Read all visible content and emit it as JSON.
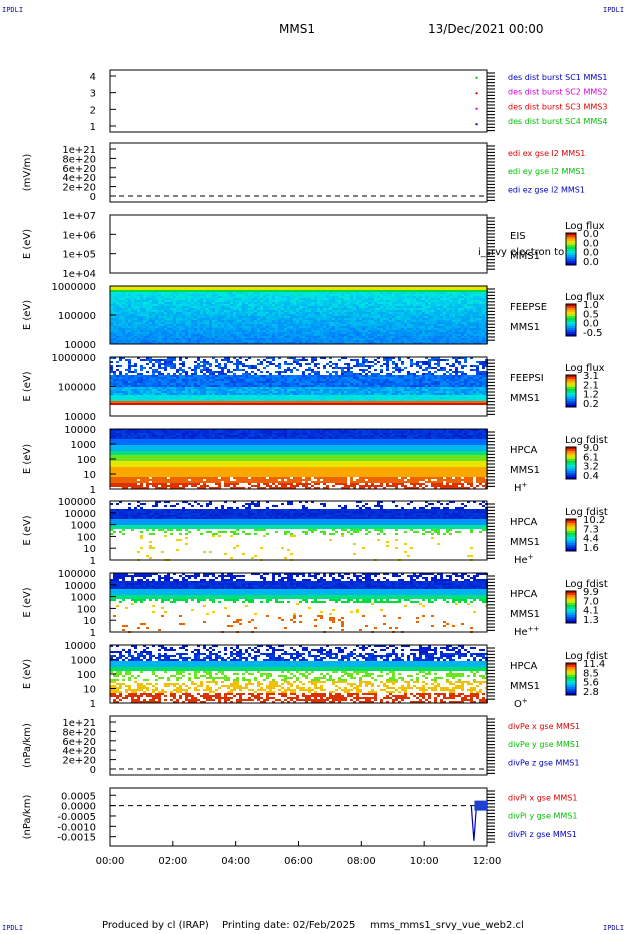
{
  "corners": {
    "tl": "IPDLI",
    "tr": "IPDLI",
    "bl": "IPDLI",
    "br": "IPDLI"
  },
  "header": {
    "spacecraft": "MMS1",
    "date": "13/Dec/2021 00:00"
  },
  "footer": {
    "producer": "Produced by cl (IRAP)",
    "printing": "Printing date: 02/Feb/2025",
    "file": "mms_mms1_srvy_vue_web2.cl"
  },
  "time_axis": {
    "ticks": [
      "00:00",
      "02:00",
      "04:00",
      "06:00",
      "08:00",
      "10:00",
      "12:00"
    ]
  },
  "colors": {
    "mms1": "#0000c0",
    "mms2": "#d000d0",
    "mms3": "#e00000",
    "mms4": "#00c000"
  },
  "chart_data": [
    {
      "type": "scatter",
      "panel": "des_dist_burst",
      "ylabel": "",
      "yticks": [
        "4",
        "3",
        "2",
        "1"
      ],
      "ylim": [
        0.5,
        4.5
      ],
      "legend": [
        "des dist burst SC1 MMS1",
        "des dist burst SC2 MMS2",
        "des dist burst SC3 MMS3",
        "des dist burst SC4 MMS4"
      ],
      "legend_colors": [
        "#0000c0",
        "#d000d0",
        "#e00000",
        "#00c000"
      ],
      "series": [
        {
          "name": "des dist burst SC1 MMS1",
          "x": [
            "11:40"
          ],
          "y": [
            1
          ]
        },
        {
          "name": "des dist burst SC2 MMS2",
          "x": [
            "11:40"
          ],
          "y": [
            2
          ]
        },
        {
          "name": "des dist burst SC3 MMS3",
          "x": [
            "11:40"
          ],
          "y": [
            3
          ]
        },
        {
          "name": "des dist burst SC4 MMS4",
          "x": [
            "11:40"
          ],
          "y": [
            4
          ]
        }
      ]
    },
    {
      "type": "line",
      "panel": "edi",
      "ylabel": "(mV/m)",
      "yticks": [
        "1e+21",
        "8e+20",
        "6e+20",
        "4e+20",
        "2e+20",
        "0"
      ],
      "legend": [
        "edi ex gse l2 MMS1",
        "edi ey gse l2 MMS1",
        "edi ez gse l2 MMS1"
      ],
      "legend_colors": [
        "#e00000",
        "#00c000",
        "#0000c0"
      ],
      "zero_line": true
    },
    {
      "type": "heatmap",
      "panel": "EIS",
      "ylabel": "E (eV)",
      "yticks": [
        "1e+07",
        "1e+06",
        "1e+05",
        "1e+04"
      ],
      "instrument": [
        "EIS",
        "MMS1"
      ],
      "overlay_text": "i_srvy electron to",
      "colorbar": {
        "title": "Log flux",
        "ticks": [
          "0.0",
          "0.0",
          "0.0",
          "0.0"
        ]
      },
      "spectrogram": "empty"
    },
    {
      "type": "heatmap",
      "panel": "FEEPSE",
      "ylabel": "E (eV)",
      "yticks": [
        "1000000",
        "100000",
        "10000"
      ],
      "instrument": [
        "FEEPSE",
        "MMS1"
      ],
      "colorbar": {
        "title": "Log flux",
        "ticks": [
          "1.0",
          "0.5",
          "0.0",
          "-0.5"
        ]
      },
      "spectrogram": "feepse"
    },
    {
      "type": "heatmap",
      "panel": "FEEPSI",
      "ylabel": "E (eV)",
      "yticks": [
        "1000000",
        "100000",
        "10000"
      ],
      "instrument": [
        "FEEPSI",
        "MMS1"
      ],
      "colorbar": {
        "title": "Log flux",
        "ticks": [
          "3.1",
          "2.1",
          "1.2",
          "0.2"
        ]
      },
      "spectrogram": "feepsi"
    },
    {
      "type": "heatmap",
      "panel": "HPCA H+",
      "ylabel": "E (eV)",
      "yticks": [
        "10000",
        "1000",
        "100",
        "10",
        "1"
      ],
      "instrument": [
        "HPCA",
        "MMS1"
      ],
      "species": {
        "base": "H",
        "sup": "+"
      },
      "colorbar": {
        "title": "Log fdist",
        "ticks": [
          "9.0",
          "6.1",
          "3.2",
          "0.4"
        ]
      },
      "spectrogram": "hplus"
    },
    {
      "type": "heatmap",
      "panel": "HPCA He+",
      "ylabel": "E (eV)",
      "yticks": [
        "100000",
        "10000",
        "1000",
        "100",
        "10",
        "1"
      ],
      "instrument": [
        "HPCA",
        "MMS1"
      ],
      "species": {
        "base": "He",
        "sup": "+"
      },
      "colorbar": {
        "title": "Log fdist",
        "ticks": [
          "10.2",
          "7.3",
          "4.4",
          "1.6"
        ]
      },
      "spectrogram": "heplus"
    },
    {
      "type": "heatmap",
      "panel": "HPCA He++",
      "ylabel": "E (eV)",
      "yticks": [
        "100000",
        "10000",
        "1000",
        "100",
        "10",
        "1"
      ],
      "instrument": [
        "HPCA",
        "MMS1"
      ],
      "species": {
        "base": "He",
        "sup": "++"
      },
      "colorbar": {
        "title": "Log fdist",
        "ticks": [
          "9.9",
          "7.0",
          "4.1",
          "1.3"
        ]
      },
      "spectrogram": "hepp"
    },
    {
      "type": "heatmap",
      "panel": "HPCA O+",
      "ylabel": "E (eV)",
      "yticks": [
        "10000",
        "1000",
        "100",
        "10",
        "1"
      ],
      "instrument": [
        "HPCA",
        "MMS1"
      ],
      "species": {
        "base": "O",
        "sup": "+"
      },
      "colorbar": {
        "title": "Log fdist",
        "ticks": [
          "11.4",
          "8.5",
          "5.6",
          "2.8"
        ]
      },
      "spectrogram": "oplus"
    },
    {
      "type": "line",
      "panel": "divPe",
      "ylabel": "(nPa/km)",
      "yticks": [
        "1e+21",
        "8e+20",
        "6e+20",
        "4e+20",
        "2e+20",
        "0"
      ],
      "legend": [
        "divPe x gse MMS1",
        "divPe y gse MMS1",
        "divPe z gse MMS1"
      ],
      "legend_colors": [
        "#e00000",
        "#00c000",
        "#0000c0"
      ],
      "zero_line": true
    },
    {
      "type": "line",
      "panel": "divPi",
      "ylabel": "(nPa/km)",
      "yticks": [
        "0.0005",
        "0.0000",
        "-0.0005",
        "-0.0010",
        "-0.0015"
      ],
      "yvalues": [
        0.0005,
        0.0,
        -0.0005,
        -0.001,
        -0.0015
      ],
      "ylim": [
        0.00085,
        -0.00195
      ],
      "legend": [
        "divPi x gse MMS1",
        "divPi y gse MMS1",
        "divPi z gse MMS1"
      ],
      "legend_colors": [
        "#e00000",
        "#00c000",
        "#0000c0"
      ],
      "zero_line": true,
      "series": [
        {
          "name": "divPi z gse MMS1",
          "x": [
            "11:30",
            "11:35",
            "11:40",
            "11:45",
            "11:50",
            "12:00"
          ],
          "y": [
            0.0,
            -0.0017,
            5e-05,
            -3e-05,
            4e-05,
            0.0
          ]
        }
      ]
    }
  ]
}
